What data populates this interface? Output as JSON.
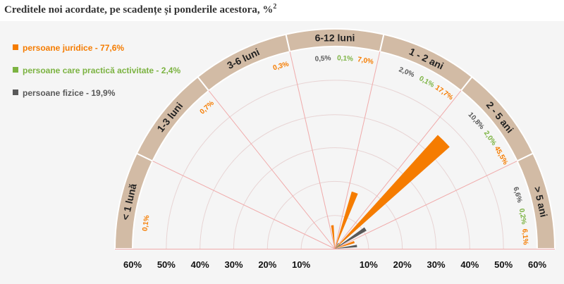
{
  "title": {
    "text": "Creditele noi acordate, pe scadențe și ponderile acestora, %",
    "footnote_mark": "2"
  },
  "colors": {
    "juridice": "#f57c00",
    "practica": "#7cb342",
    "fizice": "#595959",
    "band": "#d2bba5",
    "spoke": "#f0aaaa",
    "ring": "#e8d4d4"
  },
  "chart_data": {
    "type": "radial-bar",
    "legend": [
      {
        "key": "juridice",
        "label": "persoane juridice - 77,6%"
      },
      {
        "key": "practica",
        "label": "persoane care practică activitate - 2,4%"
      },
      {
        "key": "fizice",
        "label": "persoane fizice - 19,9%"
      }
    ],
    "categories": [
      "< 1 lună",
      "1-3 luni",
      "3-6 luni",
      "6-12 luni",
      "1 - 2 ani",
      "2 - 5 ani",
      "> 5 ani"
    ],
    "series": [
      {
        "key": "juridice",
        "values": [
          null,
          0.7,
          0.3,
          7.0,
          17.7,
          45.5,
          6.1
        ]
      },
      {
        "key": "practica",
        "values": [
          null,
          null,
          null,
          0.1,
          0.1,
          2.0,
          0.2
        ]
      },
      {
        "key": "fizice",
        "values": [
          null,
          null,
          null,
          0.5,
          2.0,
          10.8,
          6.6
        ]
      }
    ],
    "lone_labels": [
      {
        "category": "< 1 lună",
        "text": "0,1%",
        "color_key": "juridice"
      }
    ],
    "axis_ticks_left": [
      "60%",
      "50%",
      "40%",
      "30%",
      "20%",
      "10%"
    ],
    "axis_ticks_right": [
      "10%",
      "20%",
      "30%",
      "40%",
      "50%",
      "60%"
    ],
    "ylim": [
      0,
      60
    ]
  }
}
